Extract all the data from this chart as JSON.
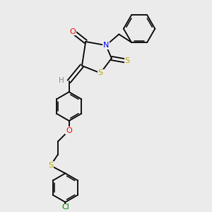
{
  "bg_color": "#ebebeb",
  "bond_color": "black",
  "atom_colors": {
    "O": "red",
    "N": "blue",
    "S": "#bbaa00",
    "Cl": "green",
    "H": "#888888"
  },
  "lw": 1.3
}
